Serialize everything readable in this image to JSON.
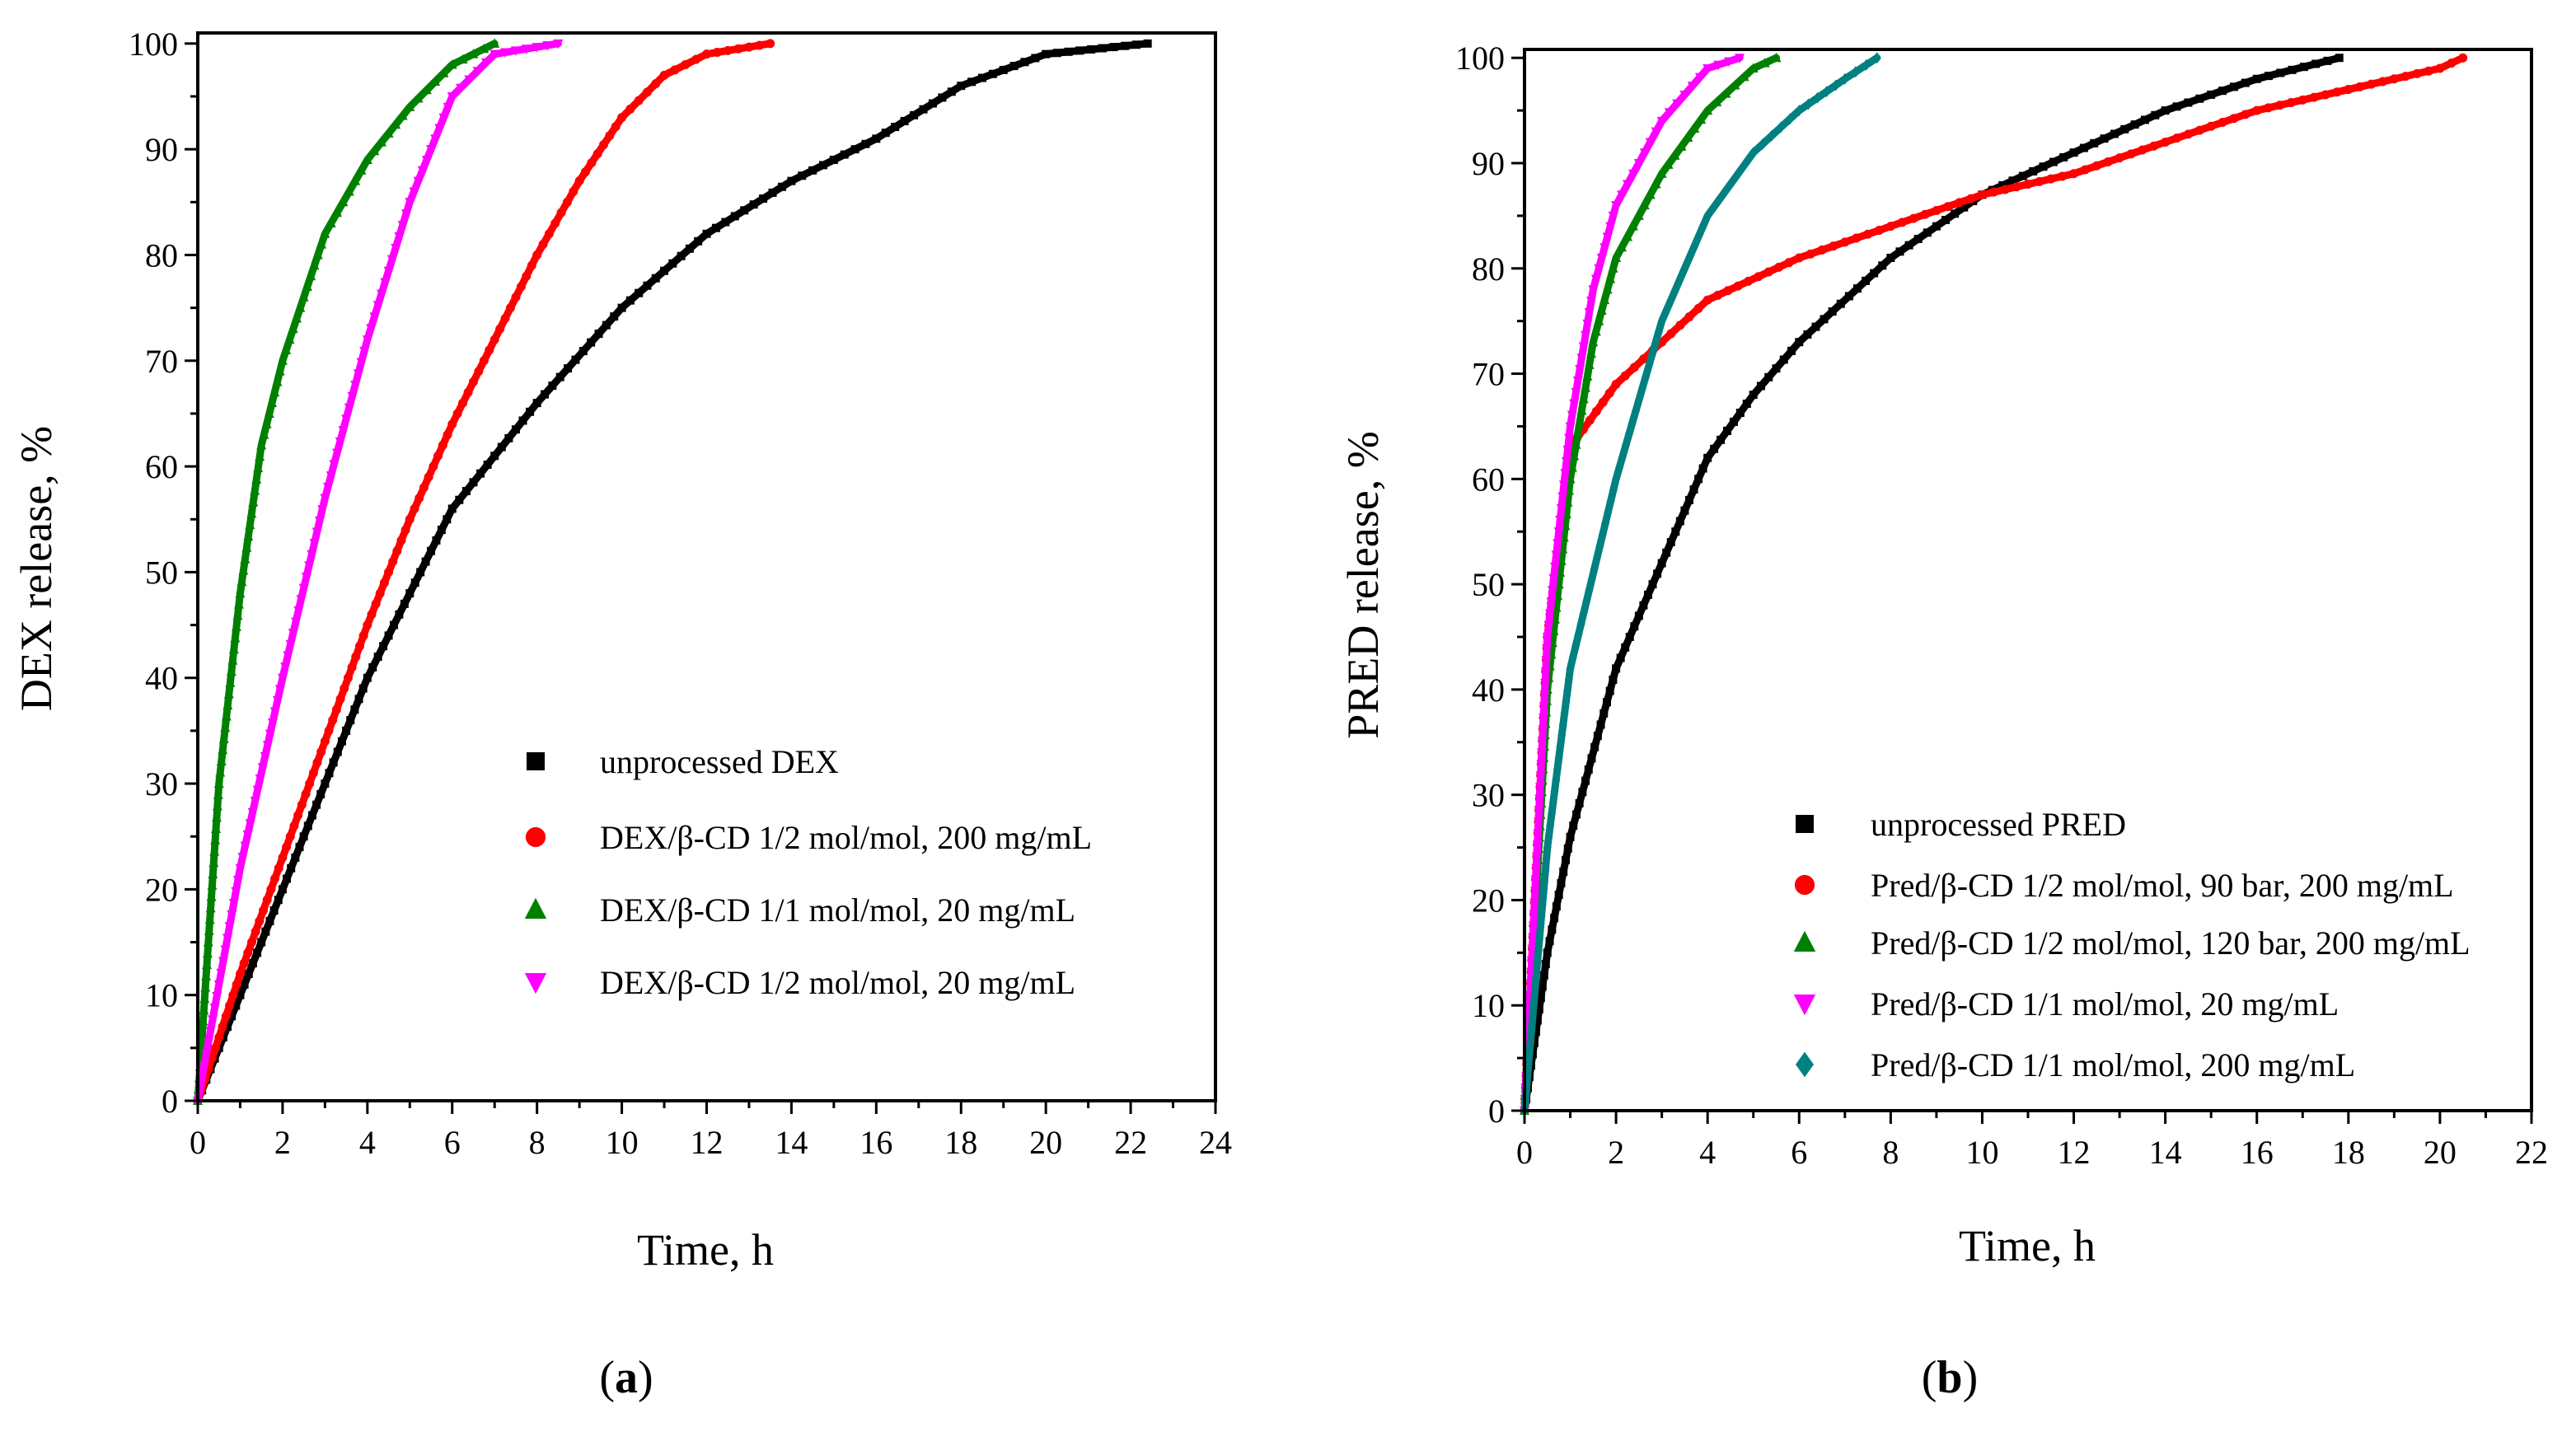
{
  "chart_data": [
    {
      "type": "scatter",
      "caption_letter": "a",
      "caption_open": "(",
      "caption_close": ")",
      "xlabel": "Time, h",
      "ylabel": "DEX release, %",
      "xlim": [
        0,
        24
      ],
      "ylim": [
        0,
        101
      ],
      "xticks": [
        0,
        2,
        4,
        6,
        8,
        10,
        12,
        14,
        16,
        18,
        20,
        22,
        24
      ],
      "yticks": [
        0,
        10,
        20,
        30,
        40,
        50,
        60,
        70,
        80,
        90,
        100
      ],
      "grid": false,
      "legend_position": "lower-right",
      "series": [
        {
          "name": "unprocessed DEX",
          "color": "#000000",
          "marker": "square",
          "x": [
            0,
            1,
            2,
            3,
            4,
            5,
            6,
            7,
            8,
            10,
            12,
            14,
            16,
            18,
            20,
            22.4
          ],
          "y": [
            0,
            10,
            20,
            30,
            40,
            48,
            56,
            61,
            66,
            75,
            82,
            87,
            91,
            96,
            99,
            100
          ]
        },
        {
          "name": "DEX/β-CD 1/2 mol/mol, 200 mg/mL",
          "color": "#ff0000",
          "marker": "circle",
          "x": [
            0,
            1,
            2,
            3,
            4,
            5,
            6,
            7,
            8,
            9,
            10,
            11,
            12,
            13.5
          ],
          "y": [
            0,
            12,
            23,
            34,
            45,
            55,
            64,
            72,
            80,
            87,
            93,
            97,
            99,
            100
          ]
        },
        {
          "name": "DEX/β-CD 1/1 mol/mol, 20 mg/mL",
          "color": "#008000",
          "marker": "triangle-up",
          "x": [
            0,
            0.5,
            1,
            1.5,
            2,
            3,
            4,
            5,
            6,
            7
          ],
          "y": [
            0,
            30,
            48,
            62,
            70,
            82,
            89,
            94,
            98,
            100
          ]
        },
        {
          "name": "DEX/β-CD 1/2 mol/mol, 20 mg/mL",
          "color": "#ff00ff",
          "marker": "triangle-down",
          "x": [
            0,
            1,
            2,
            3,
            4,
            5,
            6,
            7,
            8.5
          ],
          "y": [
            0,
            22,
            40,
            57,
            72,
            85,
            95,
            99,
            100
          ]
        }
      ]
    },
    {
      "type": "scatter",
      "caption_letter": "b",
      "caption_open": "(",
      "caption_close": ")",
      "xlabel": "Time, h",
      "ylabel": "PRED release, %",
      "xlim": [
        0,
        22
      ],
      "ylim": [
        0,
        100.8
      ],
      "xticks": [
        0,
        2,
        4,
        6,
        8,
        10,
        12,
        14,
        16,
        18,
        20,
        22
      ],
      "yticks": [
        0,
        10,
        20,
        30,
        40,
        50,
        60,
        70,
        80,
        90,
        100
      ],
      "grid": false,
      "legend_position": "lower-right",
      "series": [
        {
          "name": "unprocessed PRED",
          "color": "#000000",
          "marker": "square",
          "x": [
            0,
            0.5,
            1,
            2,
            3,
            4,
            5,
            6,
            8,
            10,
            12,
            14,
            16,
            17.8
          ],
          "y": [
            0,
            15,
            26,
            42,
            52,
            62,
            68,
            73,
            81,
            87,
            91,
            95,
            98,
            100
          ]
        },
        {
          "name": "Pred/β-CD 1/2 mol/mol, 90 bar, 200 mg/mL",
          "color": "#ff0000",
          "marker": "circle",
          "x": [
            0,
            0.5,
            1,
            2,
            3,
            4,
            6,
            8,
            10,
            12,
            14,
            16,
            18,
            20,
            20.5
          ],
          "y": [
            0,
            45,
            63,
            69,
            73,
            77,
            81,
            84,
            87,
            89,
            92,
            95,
            97,
            99,
            100
          ]
        },
        {
          "name": "Pred/β-CD 1/2 mol/mol, 120 bar, 200 mg/mL",
          "color": "#008000",
          "marker": "triangle-up",
          "x": [
            0,
            0.5,
            1,
            1.5,
            2,
            3,
            4,
            5,
            5.5
          ],
          "y": [
            0,
            40,
            60,
            73,
            81,
            89,
            95,
            99,
            100
          ]
        },
        {
          "name": "Pred/β-CD 1/1 mol/mol, 20 mg/mL",
          "color": "#ff00ff",
          "marker": "triangle-down",
          "x": [
            0,
            0.5,
            1,
            1.5,
            2,
            3,
            4,
            4.7
          ],
          "y": [
            0,
            45,
            65,
            78,
            86,
            94,
            99,
            100
          ]
        },
        {
          "name": "Pred/β-CD 1/1 mol/mol, 200 mg/mL",
          "color": "#008080",
          "marker": "diamond",
          "x": [
            0,
            0.5,
            1,
            2,
            3,
            4,
            5,
            6,
            7,
            7.7
          ],
          "y": [
            0,
            25,
            42,
            60,
            75,
            85,
            91,
            95,
            98,
            100
          ]
        }
      ]
    }
  ]
}
